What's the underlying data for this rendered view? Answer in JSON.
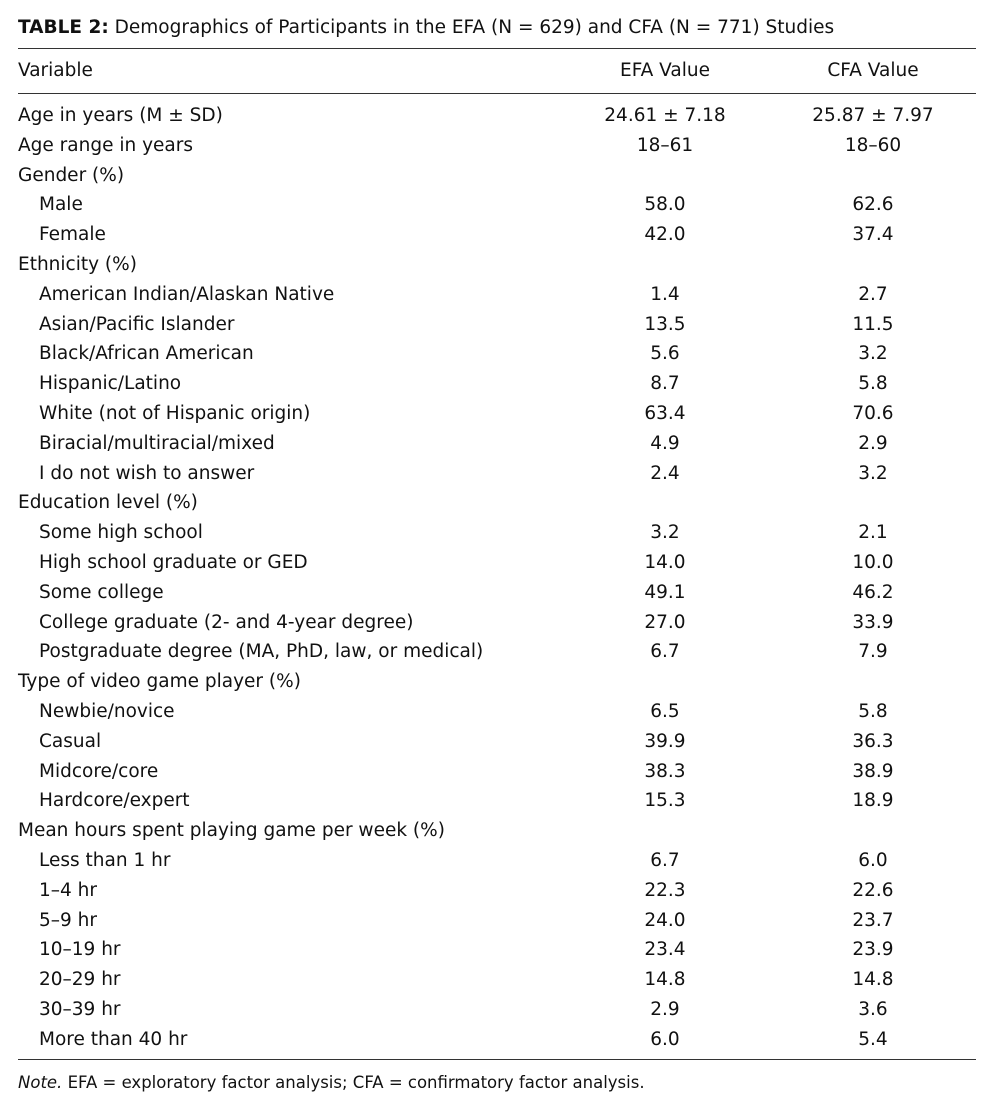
{
  "caption": {
    "label": "TABLE 2:",
    "text": "Demographics of Participants in the EFA (N = 629) and CFA (N = 771) Studies"
  },
  "header": {
    "variable": "Variable",
    "efa": "EFA Value",
    "cfa": "CFA Value"
  },
  "rows": [
    {
      "label": "Age in years (M ± SD)",
      "efa": "24.61 ± 7.18",
      "cfa": "25.87 ± 7.97",
      "indent": false
    },
    {
      "label": "Age range in years",
      "efa": "18–61",
      "cfa": "18–60",
      "indent": false
    },
    {
      "label": "Gender (%)",
      "efa": "",
      "cfa": "",
      "indent": false
    },
    {
      "label": "Male",
      "efa": "58.0",
      "cfa": "62.6",
      "indent": true
    },
    {
      "label": "Female",
      "efa": "42.0",
      "cfa": "37.4",
      "indent": true
    },
    {
      "label": "Ethnicity (%)",
      "efa": "",
      "cfa": "",
      "indent": false
    },
    {
      "label": "American Indian/Alaskan Native",
      "efa": "1.4",
      "cfa": "2.7",
      "indent": true
    },
    {
      "label": "Asian/Pacific Islander",
      "efa": "13.5",
      "cfa": "11.5",
      "indent": true
    },
    {
      "label": "Black/African American",
      "efa": "5.6",
      "cfa": "3.2",
      "indent": true
    },
    {
      "label": "Hispanic/Latino",
      "efa": "8.7",
      "cfa": "5.8",
      "indent": true
    },
    {
      "label": "White (not of Hispanic origin)",
      "efa": "63.4",
      "cfa": "70.6",
      "indent": true
    },
    {
      "label": "Biracial/multiracial/mixed",
      "efa": "4.9",
      "cfa": "2.9",
      "indent": true
    },
    {
      "label": "I do not wish to answer",
      "efa": "2.4",
      "cfa": "3.2",
      "indent": true
    },
    {
      "label": "Education level (%)",
      "efa": "",
      "cfa": "",
      "indent": false
    },
    {
      "label": "Some high school",
      "efa": "3.2",
      "cfa": "2.1",
      "indent": true
    },
    {
      "label": "High school graduate or GED",
      "efa": "14.0",
      "cfa": "10.0",
      "indent": true
    },
    {
      "label": "Some college",
      "efa": "49.1",
      "cfa": "46.2",
      "indent": true
    },
    {
      "label": "College graduate (2- and 4-year degree)",
      "efa": "27.0",
      "cfa": "33.9",
      "indent": true
    },
    {
      "label": "Postgraduate degree (MA, PhD, law, or medical)",
      "efa": "6.7",
      "cfa": "7.9",
      "indent": true
    },
    {
      "label": "Type of video game player (%)",
      "efa": "",
      "cfa": "",
      "indent": false
    },
    {
      "label": "Newbie/novice",
      "efa": "6.5",
      "cfa": "5.8",
      "indent": true
    },
    {
      "label": "Casual",
      "efa": "39.9",
      "cfa": "36.3",
      "indent": true
    },
    {
      "label": "Midcore/core",
      "efa": "38.3",
      "cfa": "38.9",
      "indent": true
    },
    {
      "label": "Hardcore/expert",
      "efa": "15.3",
      "cfa": "18.9",
      "indent": true
    },
    {
      "label": "Mean hours spent playing game per week (%)",
      "efa": "",
      "cfa": "",
      "indent": false
    },
    {
      "label": "Less than 1 hr",
      "efa": "6.7",
      "cfa": "6.0",
      "indent": true
    },
    {
      "label": "1–4 hr",
      "efa": "22.3",
      "cfa": "22.6",
      "indent": true
    },
    {
      "label": "5–9 hr",
      "efa": "24.0",
      "cfa": "23.7",
      "indent": true
    },
    {
      "label": "10–19 hr",
      "efa": "23.4",
      "cfa": "23.9",
      "indent": true
    },
    {
      "label": "20–29 hr",
      "efa": "14.8",
      "cfa": "14.8",
      "indent": true
    },
    {
      "label": "30–39 hr",
      "efa": "2.9",
      "cfa": "3.6",
      "indent": true
    },
    {
      "label": "More than 40 hr",
      "efa": "6.0",
      "cfa": "5.4",
      "indent": true
    }
  ],
  "note": {
    "label": "Note.",
    "text": "EFA = exploratory factor analysis; CFA = confirmatory factor analysis."
  }
}
